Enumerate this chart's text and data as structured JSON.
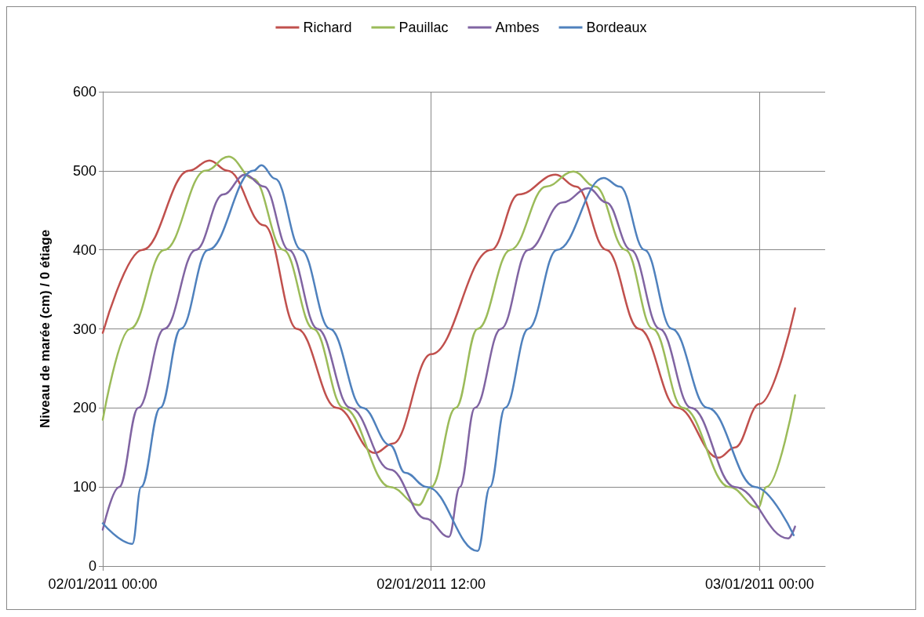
{
  "chart_data": {
    "type": "line",
    "ylabel": "Niveau de marée (cm) / 0 étiage",
    "xlim": [
      "2011-01-02T00:00",
      "2011-01-03T02:24"
    ],
    "xticks": [
      {
        "value": "2011-01-02T00:00",
        "label": "02/01/2011 00:00"
      },
      {
        "value": "2011-01-02T12:00",
        "label": "02/01/2011 12:00"
      },
      {
        "value": "2011-01-03T00:00",
        "label": "03/01/2011 00:00"
      }
    ],
    "ylim": [
      0,
      600
    ],
    "yticks": [
      0,
      100,
      200,
      300,
      400,
      500,
      600
    ],
    "grid": true,
    "legend": "top",
    "marker": "none",
    "line_style": "solid",
    "series": [
      {
        "name": "Richard",
        "color": "#c0504d",
        "x": [
          "2011-01-02T00:00",
          "2011-01-02T01:27",
          "2011-01-02T03:09",
          "2011-01-02T03:54",
          "2011-01-02T04:34",
          "2011-01-02T05:54",
          "2011-01-02T07:06",
          "2011-01-02T08:33",
          "2011-01-02T09:57",
          "2011-01-02T10:36",
          "2011-01-02T12:00",
          "2011-01-02T14:12",
          "2011-01-02T15:12",
          "2011-01-02T16:33",
          "2011-01-02T17:18",
          "2011-01-02T18:24",
          "2011-01-02T19:36",
          "2011-01-02T21:00",
          "2011-01-02T22:30",
          "2011-01-02T23:06",
          "2011-01-03T00:00",
          "2011-01-03T01:18"
        ],
        "values": [
          295,
          400,
          500,
          513,
          500,
          431,
          300,
          200,
          143,
          155,
          268,
          400,
          470,
          495,
          480,
          400,
          300,
          200,
          137,
          150,
          205,
          326
        ]
      },
      {
        "name": "Pauillac",
        "color": "#9bbb59",
        "x": [
          "2011-01-02T00:00",
          "2011-01-02T01:00",
          "2011-01-02T02:15",
          "2011-01-02T03:45",
          "2011-01-02T04:36",
          "2011-01-02T05:30",
          "2011-01-02T06:36",
          "2011-01-02T07:42",
          "2011-01-02T08:48",
          "2011-01-02T10:30",
          "2011-01-02T11:33",
          "2011-01-02T12:00",
          "2011-01-02T12:54",
          "2011-01-02T13:42",
          "2011-01-02T14:54",
          "2011-01-02T16:12",
          "2011-01-02T17:12",
          "2011-01-02T18:00",
          "2011-01-02T19:06",
          "2011-01-02T20:06",
          "2011-01-02T21:12",
          "2011-01-02T22:54",
          "2011-01-02T23:57",
          "2011-01-03T00:15",
          "2011-01-03T01:18"
        ],
        "values": [
          185,
          300,
          400,
          500,
          518,
          490,
          400,
          300,
          200,
          100,
          77,
          100,
          200,
          300,
          400,
          480,
          499,
          480,
          400,
          300,
          200,
          100,
          74,
          100,
          216
        ]
      },
      {
        "name": "Ambes",
        "color": "#8064a2",
        "x": [
          "2011-01-02T00:00",
          "2011-01-02T00:36",
          "2011-01-02T01:18",
          "2011-01-02T02:15",
          "2011-01-02T03:24",
          "2011-01-02T04:24",
          "2011-01-02T05:12",
          "2011-01-02T05:54",
          "2011-01-02T06:48",
          "2011-01-02T07:51",
          "2011-01-02T09:03",
          "2011-01-02T10:30",
          "2011-01-02T11:48",
          "2011-01-02T12:39",
          "2011-01-02T13:03",
          "2011-01-02T13:36",
          "2011-01-02T14:33",
          "2011-01-02T15:33",
          "2011-01-02T16:48",
          "2011-01-02T17:45",
          "2011-01-02T18:24",
          "2011-01-02T19:18",
          "2011-01-02T20:21",
          "2011-01-02T21:30",
          "2011-01-02T23:06",
          "2011-01-03T01:03",
          "2011-01-03T01:18"
        ],
        "values": [
          46,
          100,
          200,
          300,
          400,
          470,
          495,
          480,
          400,
          300,
          200,
          122,
          60,
          37,
          100,
          200,
          300,
          400,
          460,
          478,
          460,
          400,
          300,
          200,
          100,
          35,
          50
        ]
      },
      {
        "name": "Bordeaux",
        "color": "#4f81bd",
        "x": [
          "2011-01-02T00:00",
          "2011-01-02T01:05",
          "2011-01-02T01:24",
          "2011-01-02T02:06",
          "2011-01-02T02:51",
          "2011-01-02T03:51",
          "2011-01-02T05:30",
          "2011-01-02T05:48",
          "2011-01-02T06:18",
          "2011-01-02T07:15",
          "2011-01-02T08:18",
          "2011-01-02T09:30",
          "2011-01-02T10:30",
          "2011-01-02T11:03",
          "2011-01-02T11:51",
          "2011-01-02T13:42",
          "2011-01-02T14:09",
          "2011-01-02T14:42",
          "2011-01-02T15:33",
          "2011-01-02T16:36",
          "2011-01-02T18:18",
          "2011-01-02T18:54",
          "2011-01-02T19:48",
          "2011-01-02T20:48",
          "2011-01-02T22:06",
          "2011-01-02T23:51",
          "2011-01-03T01:15"
        ],
        "values": [
          54,
          28,
          100,
          200,
          300,
          400,
          500,
          507,
          490,
          400,
          300,
          200,
          153,
          118,
          100,
          19,
          100,
          200,
          300,
          400,
          491,
          480,
          400,
          300,
          200,
          100,
          39
        ]
      }
    ]
  }
}
